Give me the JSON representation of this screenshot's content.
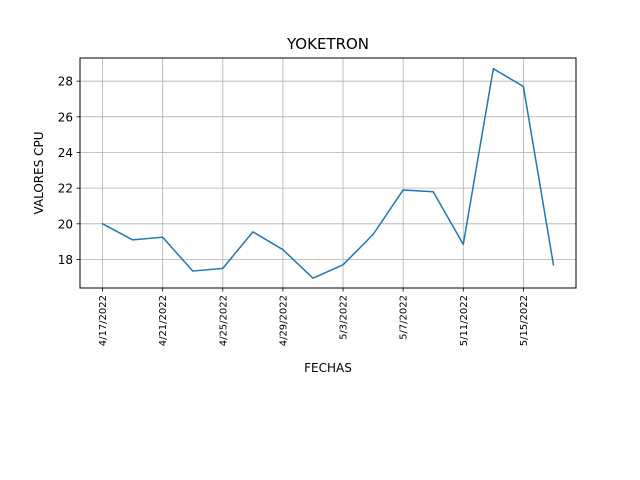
{
  "chart_data": {
    "type": "line",
    "title": "YOKETRON",
    "xlabel": "FECHAS",
    "ylabel": "VALORES CPU",
    "x": [
      "2022-04-17",
      "2022-04-19",
      "2022-04-21",
      "2022-04-23",
      "2022-04-25",
      "2022-04-27",
      "2022-04-29",
      "2022-05-01",
      "2022-05-03",
      "2022-05-05",
      "2022-05-07",
      "2022-05-09",
      "2022-05-11",
      "2022-05-13",
      "2022-05-15",
      "2022-05-17"
    ],
    "series": [
      {
        "values": [
          20.0,
          19.1,
          19.25,
          17.35,
          17.5,
          19.55,
          18.55,
          16.95,
          17.7,
          19.4,
          21.9,
          21.8,
          18.85,
          28.7,
          27.7,
          17.7
        ],
        "color": "#1f77b4"
      }
    ],
    "xticks": [
      "2022-04-17",
      "2022-04-21",
      "2022-04-25",
      "2022-04-29",
      "2022-05-03",
      "2022-05-07",
      "2022-05-11",
      "2022-05-15"
    ],
    "xtick_labels": [
      "4/17/2022",
      "4/21/2022",
      "4/25/2022",
      "4/29/2022",
      "5/3/2022",
      "5/7/2022",
      "5/11/2022",
      "5/15/2022"
    ],
    "yticks": [
      18,
      20,
      22,
      24,
      26,
      28
    ],
    "ytick_labels": [
      "18",
      "20",
      "22",
      "24",
      "26",
      "28"
    ],
    "xlim": [
      "2022-04-15T12:00",
      "2022-05-18T12:00"
    ],
    "ylim": [
      16.4,
      29.3
    ],
    "grid": true,
    "legend": "none"
  }
}
